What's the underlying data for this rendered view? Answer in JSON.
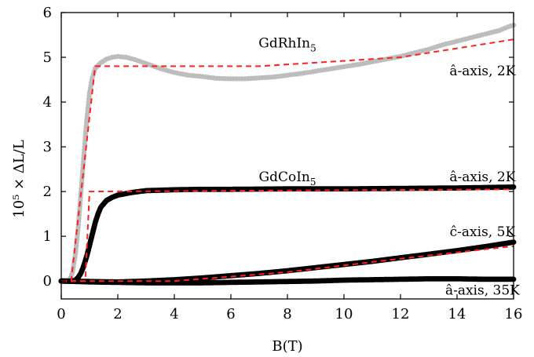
{
  "chart_data": {
    "type": "scatter",
    "xlabel": "B(T)",
    "ylabel": "10⁵ × ΔL/L",
    "xlim": [
      0,
      16
    ],
    "ylim": [
      -0.4,
      6
    ],
    "x_ticks": [
      "0",
      "2",
      "4",
      "6",
      "8",
      "10",
      "12",
      "14",
      "16"
    ],
    "y_ticks": [
      "0",
      "1",
      "2",
      "3",
      "4",
      "5",
      "6"
    ],
    "grid": false,
    "series": [
      {
        "color": "#bdbdbd",
        "style": "markers",
        "points": [
          [
            0,
            0
          ],
          [
            0.3,
            0.02
          ],
          [
            0.4,
            0.2
          ],
          [
            0.5,
            0.6
          ],
          [
            0.6,
            1.2
          ],
          [
            0.7,
            2.0
          ],
          [
            0.8,
            2.8
          ],
          [
            0.9,
            3.6
          ],
          [
            1.0,
            4.2
          ],
          [
            1.1,
            4.55
          ],
          [
            1.2,
            4.75
          ],
          [
            1.4,
            4.88
          ],
          [
            1.6,
            4.96
          ],
          [
            1.8,
            5.0
          ],
          [
            2.0,
            5.02
          ],
          [
            2.3,
            5.0
          ],
          [
            2.6,
            4.95
          ],
          [
            3.0,
            4.86
          ],
          [
            3.5,
            4.75
          ],
          [
            4.0,
            4.66
          ],
          [
            4.5,
            4.6
          ],
          [
            5.0,
            4.57
          ],
          [
            5.5,
            4.53
          ],
          [
            6.0,
            4.52
          ],
          [
            6.5,
            4.52
          ],
          [
            7.0,
            4.54
          ],
          [
            7.5,
            4.56
          ],
          [
            8.0,
            4.6
          ],
          [
            8.5,
            4.64
          ],
          [
            9.0,
            4.69
          ],
          [
            9.5,
            4.74
          ],
          [
            10,
            4.79
          ],
          [
            10.5,
            4.84
          ],
          [
            11,
            4.9
          ],
          [
            11.5,
            4.96
          ],
          [
            12,
            5.02
          ],
          [
            12.5,
            5.1
          ],
          [
            13,
            5.18
          ],
          [
            13.5,
            5.28
          ],
          [
            14,
            5.36
          ],
          [
            14.5,
            5.44
          ],
          [
            15,
            5.52
          ],
          [
            15.5,
            5.6
          ],
          [
            15.8,
            5.68
          ],
          [
            16,
            5.72
          ]
        ]
      },
      {
        "color": "#000000",
        "style": "markers",
        "points": [
          [
            0,
            0
          ],
          [
            0.4,
            0.0
          ],
          [
            0.5,
            0.02
          ],
          [
            0.6,
            0.08
          ],
          [
            0.7,
            0.18
          ],
          [
            0.8,
            0.35
          ],
          [
            0.9,
            0.55
          ],
          [
            1.0,
            0.8
          ],
          [
            1.1,
            1.05
          ],
          [
            1.2,
            1.3
          ],
          [
            1.3,
            1.5
          ],
          [
            1.4,
            1.65
          ],
          [
            1.6,
            1.8
          ],
          [
            1.8,
            1.87
          ],
          [
            2.0,
            1.92
          ],
          [
            2.5,
            1.98
          ],
          [
            3.0,
            2.02
          ],
          [
            3.5,
            2.03
          ],
          [
            4.0,
            2.04
          ],
          [
            5.0,
            2.05
          ],
          [
            6.0,
            2.05
          ],
          [
            8.0,
            2.06
          ],
          [
            10,
            2.06
          ],
          [
            12,
            2.07
          ],
          [
            14,
            2.08
          ],
          [
            15,
            2.09
          ],
          [
            16,
            2.1
          ]
        ]
      },
      {
        "color": "#000000",
        "style": "markers",
        "points": [
          [
            0,
            0
          ],
          [
            1,
            -0.01
          ],
          [
            2,
            -0.02
          ],
          [
            3,
            0.0
          ],
          [
            4,
            0.03
          ],
          [
            5,
            0.07
          ],
          [
            6,
            0.12
          ],
          [
            7,
            0.17
          ],
          [
            8,
            0.23
          ],
          [
            9,
            0.3
          ],
          [
            10,
            0.37
          ],
          [
            11,
            0.44
          ],
          [
            12,
            0.52
          ],
          [
            13,
            0.6
          ],
          [
            14,
            0.68
          ],
          [
            15,
            0.77
          ],
          [
            16,
            0.87
          ]
        ]
      },
      {
        "color": "#000000",
        "style": "markers",
        "points": [
          [
            0,
            0
          ],
          [
            1,
            -0.02
          ],
          [
            2,
            -0.03
          ],
          [
            3,
            -0.04
          ],
          [
            4,
            -0.04
          ],
          [
            5,
            -0.04
          ],
          [
            6,
            -0.03
          ],
          [
            7,
            -0.02
          ],
          [
            8,
            -0.01
          ],
          [
            9,
            0.0
          ],
          [
            10,
            0.02
          ],
          [
            11,
            0.03
          ],
          [
            12,
            0.04
          ],
          [
            13,
            0.05
          ],
          [
            14,
            0.05
          ],
          [
            15,
            0.04
          ],
          [
            16,
            0.04
          ]
        ]
      },
      {
        "color": "#ff2020",
        "style": "dashed",
        "points": [
          [
            0,
            0
          ],
          [
            0.35,
            0
          ],
          [
            1.2,
            4.8
          ],
          [
            7,
            4.8
          ],
          [
            12,
            5.0
          ],
          [
            16,
            5.4
          ]
        ]
      },
      {
        "color": "#ff2020",
        "style": "dashed",
        "points": [
          [
            0,
            0
          ],
          [
            0.85,
            0
          ],
          [
            1.0,
            2.0
          ],
          [
            16,
            2.05
          ]
        ]
      },
      {
        "color": "#ff2020",
        "style": "dashed",
        "points": [
          [
            0,
            0
          ],
          [
            4,
            0
          ],
          [
            8,
            0.2
          ],
          [
            12,
            0.5
          ],
          [
            16,
            0.78
          ]
        ]
      }
    ],
    "annotations": [
      {
        "text_main": "GdRhIn",
        "text_sub": "5",
        "x": 8.0,
        "y": 5.22
      },
      {
        "text_main": "â-axis, 2K",
        "x": 14.9,
        "y": 4.6
      },
      {
        "text_main": "GdCoIn",
        "text_sub": "5",
        "x": 8.0,
        "y": 2.23
      },
      {
        "text_main": "â-axis, 2K",
        "x": 14.9,
        "y": 2.23
      },
      {
        "text_main": "ĉ-axis, 5K",
        "x": 14.9,
        "y": 1.0
      },
      {
        "text_main": "â-axis, 35K",
        "x": 14.9,
        "y": -0.3
      }
    ]
  }
}
